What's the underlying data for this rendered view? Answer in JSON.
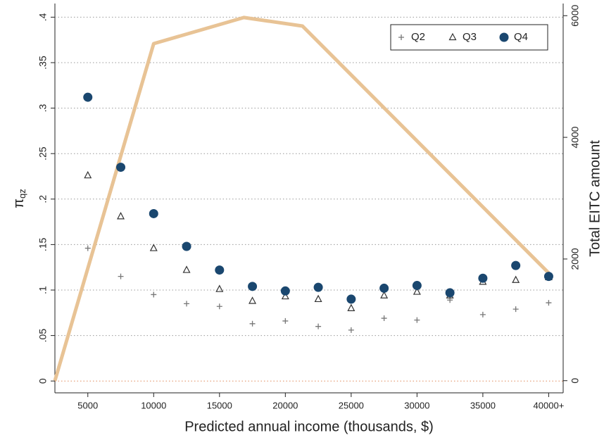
{
  "chart_data": {
    "type": "scatter",
    "xlabel": "Predicted annual income (thousands, $)",
    "ylabel": "π",
    "ylabel_sub": "qz",
    "y2label": "Total EITC amount",
    "x": [
      5000,
      7500,
      10000,
      12500,
      15000,
      17500,
      20000,
      22500,
      25000,
      27500,
      30000,
      32500,
      35000,
      37500,
      40000
    ],
    "series": [
      {
        "name": "Q2",
        "marker": "plus",
        "color": "#777777",
        "values": [
          0.146,
          0.115,
          0.095,
          0.085,
          0.082,
          0.063,
          0.066,
          0.06,
          0.056,
          0.069,
          0.067,
          0.089,
          0.073,
          0.079,
          0.086
        ]
      },
      {
        "name": "Q3",
        "marker": "triangle",
        "color": "#333333",
        "values": [
          0.226,
          0.181,
          0.146,
          0.122,
          0.101,
          0.088,
          0.093,
          0.09,
          0.08,
          0.094,
          0.098,
          0.094,
          0.109,
          0.111,
          0.114
        ]
      },
      {
        "name": "Q4",
        "marker": "circle",
        "color": "#1a476f",
        "values": [
          0.312,
          0.235,
          0.184,
          0.148,
          0.122,
          0.104,
          0.099,
          0.103,
          0.09,
          0.102,
          0.105,
          0.097,
          0.113,
          0.127,
          0.115
        ]
      }
    ],
    "line": {
      "type": "line",
      "axis": "y2",
      "color": "#e8c395",
      "x": [
        2500,
        10000,
        16850,
        21300,
        40000
      ],
      "values": [
        0,
        5540,
        5970,
        5830,
        1770
      ]
    },
    "xlim": [
      2500,
      41100
    ],
    "xticks": [
      5000,
      10000,
      15000,
      20000,
      25000,
      30000,
      35000,
      {
        "value": 40000,
        "label": "40000+"
      }
    ],
    "ylim": [
      -0.013,
      0.415
    ],
    "yticks": [
      {
        "value": 0,
        "label": "0"
      },
      {
        "value": 0.05,
        "label": ".05"
      },
      {
        "value": 0.1,
        "label": ".1"
      },
      {
        "value": 0.15,
        "label": ".15"
      },
      {
        "value": 0.2,
        "label": ".2"
      },
      {
        "value": 0.25,
        "label": ".25"
      },
      {
        "value": 0.3,
        "label": ".3"
      },
      {
        "value": 0.35,
        "label": ".35"
      },
      {
        "value": 0.4,
        "label": ".4"
      }
    ],
    "y2lim": [
      -200,
      6200
    ],
    "y2ticks": [
      0,
      2000,
      4000,
      6000
    ],
    "grid": true,
    "legend": "top-right"
  }
}
